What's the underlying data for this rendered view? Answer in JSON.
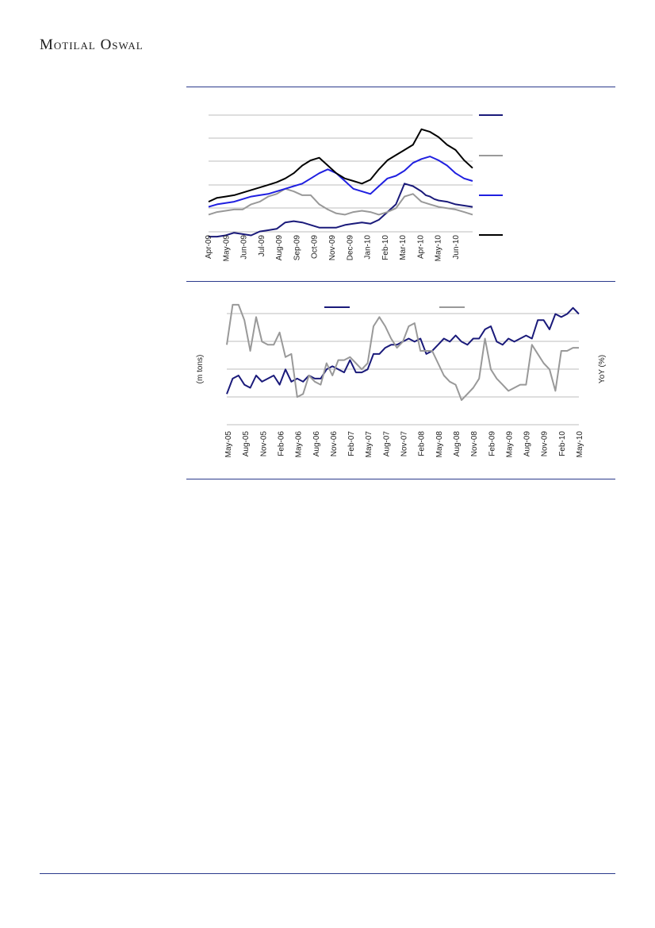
{
  "header": {
    "brand": "Motilal Oswal"
  },
  "colors": {
    "rule": "#2b3a8c",
    "grid": "#bdbdbd"
  },
  "chart_data": [
    {
      "type": "line",
      "x_tick_labels": [
        "Apr-09",
        "May-09",
        "Jun-09",
        "Jul-09",
        "Aug-09",
        "Sep-09",
        "Oct-09",
        "Nov-09",
        "Dec-09",
        "Jan-10",
        "Feb-10",
        "Mar-10",
        "Apr-10",
        "May-10",
        "Jun-10"
      ],
      "x_range": [
        0,
        62
      ],
      "y_range": [
        0,
        100
      ],
      "grid": true,
      "legend": "right",
      "series": [
        {
          "color": "#1a1a7a",
          "x": [
            0,
            2,
            4,
            6,
            8,
            10,
            12,
            14,
            16,
            18,
            20,
            22,
            24,
            26,
            28,
            30,
            32,
            34,
            36,
            38,
            40,
            42,
            44,
            46,
            48,
            50,
            51,
            52,
            53,
            54,
            56,
            58,
            60,
            62
          ],
          "y": [
            3,
            3,
            4,
            6,
            5,
            4,
            7,
            8,
            9,
            14,
            15,
            14,
            12,
            10,
            10,
            10,
            12,
            13,
            14,
            13,
            16,
            22,
            28,
            44,
            42,
            38,
            35,
            34,
            32,
            31,
            30,
            28,
            27,
            26
          ]
        },
        {
          "color": "#999999",
          "x": [
            0,
            2,
            4,
            6,
            8,
            10,
            12,
            14,
            16,
            18,
            20,
            22,
            24,
            26,
            28,
            30,
            32,
            34,
            36,
            38,
            40,
            42,
            44,
            46,
            48,
            50,
            52,
            54,
            56,
            58,
            60,
            62
          ],
          "y": [
            20,
            22,
            23,
            24,
            24,
            28,
            30,
            34,
            36,
            40,
            38,
            35,
            35,
            28,
            24,
            21,
            20,
            22,
            23,
            22,
            20,
            22,
            25,
            34,
            36,
            30,
            28,
            26,
            25,
            24,
            22,
            20
          ]
        },
        {
          "color": "#1f1fe0",
          "x": [
            0,
            2,
            4,
            6,
            8,
            10,
            12,
            14,
            16,
            18,
            20,
            22,
            24,
            26,
            28,
            30,
            32,
            34,
            36,
            38,
            40,
            42,
            44,
            46,
            48,
            50,
            52,
            54,
            56,
            58,
            60,
            62
          ],
          "y": [
            26,
            28,
            29,
            30,
            32,
            34,
            35,
            36,
            38,
            40,
            42,
            44,
            48,
            52,
            55,
            52,
            46,
            40,
            38,
            36,
            42,
            48,
            50,
            54,
            60,
            63,
            65,
            62,
            58,
            52,
            48,
            46
          ]
        },
        {
          "color": "#000000",
          "x": [
            0,
            2,
            4,
            6,
            8,
            10,
            12,
            14,
            16,
            18,
            20,
            22,
            24,
            26,
            28,
            30,
            32,
            34,
            36,
            38,
            40,
            42,
            44,
            46,
            48,
            50,
            52,
            54,
            56,
            58,
            60,
            62
          ],
          "y": [
            30,
            33,
            34,
            35,
            37,
            39,
            41,
            43,
            45,
            48,
            52,
            58,
            62,
            64,
            58,
            52,
            48,
            46,
            44,
            47,
            55,
            62,
            66,
            70,
            74,
            86,
            84,
            80,
            74,
            70,
            62,
            56
          ]
        }
      ]
    },
    {
      "type": "line",
      "x_tick_labels": [
        "May-05",
        "Aug-05",
        "Nov-05",
        "Feb-06",
        "May-06",
        "Aug-06",
        "Nov-06",
        "Feb-07",
        "May-07",
        "Aug-07",
        "Nov-07",
        "Feb-08",
        "May-08",
        "Aug-08",
        "Nov-08",
        "Feb-09",
        "May-09",
        "Aug-09",
        "Nov-09",
        "Feb-10",
        "May-10"
      ],
      "x_range": [
        0,
        60
      ],
      "y_left_range": [
        0,
        4
      ],
      "y_right_range": [
        0,
        4
      ],
      "ylabel": "(m tons)",
      "y2label": "YoY (%)",
      "grid": true,
      "legend": "top",
      "series": [
        {
          "color": "#1a1a7a",
          "axis": "left",
          "x": [
            0,
            1,
            2,
            3,
            4,
            5,
            6,
            7,
            8,
            9,
            10,
            11,
            12,
            13,
            14,
            15,
            16,
            17,
            18,
            19,
            20,
            21,
            22,
            23,
            24,
            25,
            26,
            27,
            28,
            29,
            30,
            31,
            32,
            33,
            34,
            35,
            36,
            37,
            38,
            39,
            40,
            41,
            42,
            43,
            44,
            45,
            46,
            47,
            48,
            49,
            50,
            51,
            52,
            53,
            54,
            55,
            56,
            57,
            58,
            59,
            60
          ],
          "y": [
            1.0,
            1.5,
            1.6,
            1.3,
            1.2,
            1.6,
            1.4,
            1.5,
            1.6,
            1.3,
            1.8,
            1.4,
            1.5,
            1.4,
            1.6,
            1.5,
            1.5,
            1.8,
            1.9,
            1.8,
            1.7,
            2.1,
            1.7,
            1.7,
            1.8,
            2.3,
            2.3,
            2.5,
            2.6,
            2.6,
            2.7,
            2.8,
            2.7,
            2.8,
            2.3,
            2.4,
            2.6,
            2.8,
            2.7,
            2.9,
            2.7,
            2.6,
            2.8,
            2.8,
            3.1,
            3.2,
            2.7,
            2.6,
            2.8,
            2.7,
            2.8,
            2.9,
            2.8,
            3.4,
            3.4,
            3.1,
            3.6,
            3.5,
            3.6,
            3.8,
            3.6
          ]
        },
        {
          "color": "#999999",
          "axis": "right",
          "x": [
            0,
            1,
            2,
            3,
            4,
            5,
            6,
            7,
            8,
            9,
            10,
            11,
            12,
            13,
            14,
            15,
            16,
            17,
            18,
            19,
            20,
            21,
            22,
            23,
            24,
            25,
            26,
            27,
            28,
            29,
            30,
            31,
            32,
            33,
            34,
            35,
            36,
            37,
            38,
            39,
            40,
            41,
            42,
            43,
            44,
            45,
            46,
            47,
            48,
            49,
            50,
            51,
            52,
            53,
            54,
            55,
            56,
            57,
            58,
            59,
            60
          ],
          "y": [
            2.6,
            3.9,
            3.9,
            3.4,
            2.4,
            3.5,
            2.7,
            2.6,
            2.6,
            3.0,
            2.2,
            2.3,
            0.9,
            1.0,
            1.6,
            1.4,
            1.3,
            2.0,
            1.6,
            2.1,
            2.1,
            2.2,
            2.0,
            1.8,
            2.0,
            3.2,
            3.5,
            3.2,
            2.8,
            2.5,
            2.7,
            3.2,
            3.3,
            2.4,
            2.4,
            2.4,
            2.0,
            1.6,
            1.4,
            1.3,
            0.8,
            1.0,
            1.2,
            1.5,
            2.8,
            1.8,
            1.5,
            1.3,
            1.1,
            1.2,
            1.3,
            1.3,
            2.6,
            2.3,
            2.0,
            1.8,
            1.1,
            2.4,
            2.4,
            2.5,
            2.5
          ]
        }
      ]
    }
  ]
}
